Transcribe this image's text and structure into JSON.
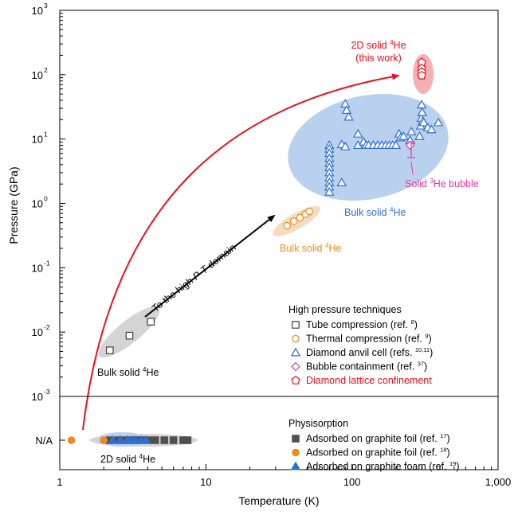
{
  "chart_data": {
    "type": "scatter",
    "title": "",
    "xlabel": "Temperature (K)",
    "ylabel": "Pressure (GPa)",
    "x_scale": "log",
    "y_scale": "log",
    "xlim": [
      1,
      1000
    ],
    "ylim": [
      0.001,
      1000
    ],
    "grid": false,
    "x_ticks": [
      "1",
      "10",
      "100",
      "1,000"
    ],
    "y_ticks": [
      {
        "base": "10",
        "exp": "-3"
      },
      {
        "base": "10",
        "exp": "-2"
      },
      {
        "base": "10",
        "exp": "-1"
      },
      {
        "base": "10",
        "exp": "0"
      },
      {
        "base": "10",
        "exp": "1"
      },
      {
        "base": "10",
        "exp": "2"
      },
      {
        "base": "10",
        "exp": "3"
      }
    ],
    "na_label": "N/A",
    "series": [
      {
        "name": "Tube compression (ref. 8)",
        "marker": "open-square",
        "color": "#404040",
        "points": [
          [
            2.2,
            0.0052
          ],
          [
            3.0,
            0.0088
          ],
          [
            4.2,
            0.0145
          ]
        ]
      },
      {
        "name": "Thermal compression (ref. 9)",
        "marker": "open-circle",
        "color": "#ee8a1a",
        "points": [
          [
            36,
            0.45
          ],
          [
            40,
            0.53
          ],
          [
            44,
            0.6
          ],
          [
            48,
            0.68
          ],
          [
            51,
            0.75
          ]
        ]
      },
      {
        "name": "Diamond anvil cell (refs. 10,11)",
        "marker": "open-triangle",
        "color": "#2f6fd0",
        "points": [
          [
            70,
            8
          ],
          [
            70,
            7
          ],
          [
            70,
            6
          ],
          [
            70,
            5
          ],
          [
            70,
            4.2
          ],
          [
            70,
            3.6
          ],
          [
            70,
            3
          ],
          [
            70,
            2.5
          ],
          [
            70,
            2.1
          ],
          [
            70,
            1.8
          ],
          [
            70,
            1.5
          ],
          [
            85,
            2.1
          ],
          [
            85,
            8.2
          ],
          [
            90,
            7.6
          ],
          [
            90,
            35
          ],
          [
            92,
            28
          ],
          [
            95,
            22
          ],
          [
            110,
            8
          ],
          [
            110,
            12
          ],
          [
            120,
            9
          ],
          [
            125,
            8
          ],
          [
            130,
            8
          ],
          [
            140,
            8
          ],
          [
            150,
            8
          ],
          [
            160,
            8
          ],
          [
            170,
            8
          ],
          [
            180,
            8
          ],
          [
            190,
            8
          ],
          [
            200,
            8
          ],
          [
            210,
            12
          ],
          [
            215,
            10.5
          ],
          [
            225,
            11
          ],
          [
            250,
            9.5
          ],
          [
            255,
            13
          ],
          [
            290,
            11
          ],
          [
            295,
            16
          ],
          [
            298,
            21
          ],
          [
            300,
            34
          ],
          [
            302,
            26
          ],
          [
            305,
            19
          ],
          [
            310,
            18
          ],
          [
            330,
            15
          ],
          [
            350,
            14
          ],
          [
            390,
            18
          ]
        ]
      },
      {
        "name": "Bubble containment (ref. 37)",
        "marker": "open-diamond",
        "color": "#e8399a",
        "points": [
          [
            250,
            8
          ]
        ]
      },
      {
        "name": "Diamond lattice confinement",
        "marker": "open-pentagon",
        "color": "#e8101e",
        "points": [
          [
            300,
            155
          ],
          [
            300,
            125
          ],
          [
            300,
            110
          ],
          [
            300,
            97
          ]
        ]
      }
    ],
    "physisorption_series": [
      {
        "name": "Adsorbed on graphite foil (ref. 17)",
        "marker": "filled-square",
        "color": "#505050",
        "x": [
          2.2,
          2.5,
          2.7,
          3.0,
          3.3,
          3.6,
          4.0,
          4.5,
          5.2,
          6.0,
          7.0,
          7.5
        ]
      },
      {
        "name": "Adsorbed on graphite foil (ref. 18)",
        "marker": "filled-circle",
        "color": "#ee8a1a",
        "x": [
          1.2,
          2.0
        ]
      },
      {
        "name": "Adsorbed on graphite foam (ref. 19)",
        "marker": "filled-triangle",
        "color": "#2f6fd0",
        "x": [
          2.3,
          2.6,
          2.9,
          3.1,
          3.3,
          3.6,
          3.9
        ]
      }
    ],
    "legend_high": {
      "title": "High pressure techniques",
      "entries": [
        {
          "label": "Tube compression (ref.",
          "ref": "8",
          "suffix": ")",
          "marker": "open-square",
          "color": "#404040",
          "text_color": "#000000"
        },
        {
          "label": "Thermal compression (ref.",
          "ref": "9",
          "suffix": ")",
          "marker": "open-circle",
          "color": "#ee8a1a",
          "text_color": "#000000"
        },
        {
          "label": "Diamond anvil cell (refs.",
          "ref": "10,11",
          "suffix": ")",
          "marker": "open-triangle",
          "color": "#2f6fd0",
          "text_color": "#000000"
        },
        {
          "label": "Bubble containment (ref.",
          "ref": "37",
          "suffix": ")",
          "marker": "open-diamond",
          "color": "#e8399a",
          "text_color": "#000000"
        },
        {
          "label": "Diamond lattice confinement",
          "ref": "",
          "suffix": "",
          "marker": "open-pentagon",
          "color": "#e8101e",
          "text_color": "#e8101e"
        }
      ]
    },
    "legend_phys": {
      "title": "Physisorption",
      "entries": [
        {
          "label": "Adsorbed on graphite foil (ref.",
          "ref": "17",
          "suffix": ")",
          "marker": "filled-square",
          "color": "#505050"
        },
        {
          "label": "Adsorbed on graphite foil (ref.",
          "ref": "18",
          "suffix": ")",
          "marker": "filled-circle",
          "color": "#ee8a1a"
        },
        {
          "label": "Adsorbed on graphite foam (ref.",
          "ref": "19",
          "suffix": ")",
          "marker": "filled-triangle",
          "color": "#2f6fd0"
        }
      ]
    },
    "annotations": {
      "bulk_low": {
        "text": "Bulk solid ",
        "sup": "4",
        "rest": "He",
        "color": "#000000"
      },
      "bulk_orange": {
        "text": "Bulk solid ",
        "sup": "4",
        "rest": "He",
        "color": "#ee8a1a"
      },
      "bulk_blue": {
        "text": "Bulk solid ",
        "sup": "4",
        "rest": "He",
        "color": "#2f6fd0"
      },
      "solid3": {
        "text": "Solid ",
        "sup": "3",
        "rest": "He bubble",
        "color": "#e8399a"
      },
      "twoD_red_1": {
        "text": "2D solid ",
        "sup": "4",
        "rest": "He",
        "color": "#e8101e"
      },
      "twoD_red_2": {
        "text": "(this work)",
        "color": "#e8101e"
      },
      "twoD_bottom": {
        "text": "2D solid ",
        "sup": "4",
        "rest": "He",
        "color": "#000000"
      },
      "arrow_label": {
        "pre": "To the high ",
        "italic": "P-T",
        "post": " domain",
        "color": "#000000"
      }
    },
    "colors": {
      "gray_region": "#cfcfcf",
      "orange_region": "#f3dcc2",
      "blue_region": "#b9d0ee",
      "red_region": "#f5b1b1",
      "red_arrow": "#e8101e",
      "black_arrow": "#000000"
    }
  }
}
